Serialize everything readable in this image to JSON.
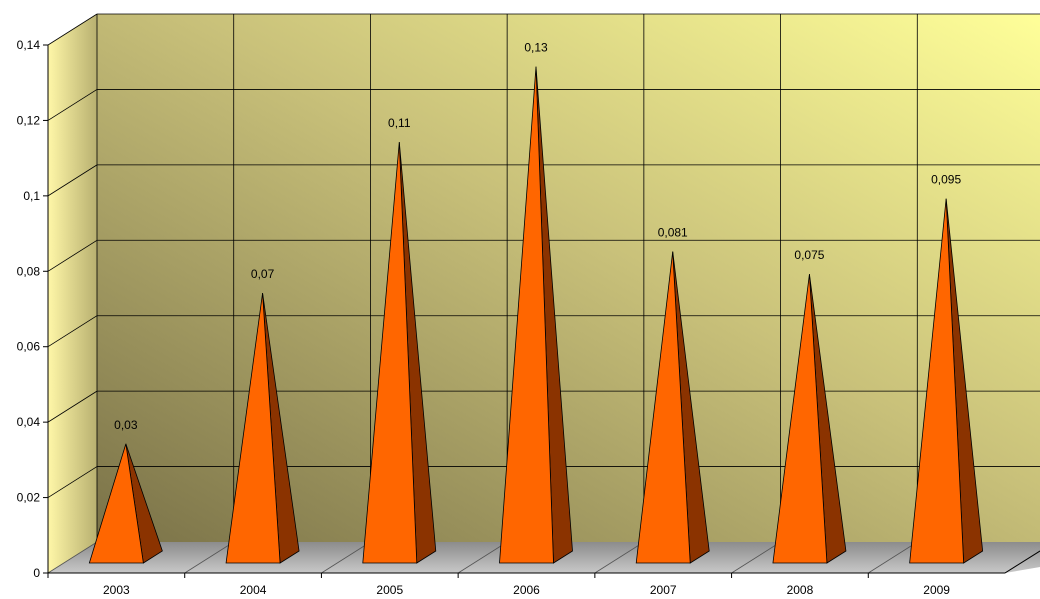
{
  "chart_data": {
    "type": "bar",
    "style": "3d-pyramid",
    "categories": [
      "2003",
      "2004",
      "2005",
      "2006",
      "2007",
      "2008",
      "2009"
    ],
    "series": [
      {
        "values": [
          0.03,
          0.07,
          0.11,
          0.13,
          0.081,
          0.075,
          0.095
        ]
      }
    ],
    "data_labels": [
      "0,03",
      "0,07",
      "0,11",
      "0,13",
      "0,081",
      "0,075",
      "0,095"
    ],
    "y_ticks": [
      0,
      0.02,
      0.04,
      0.06,
      0.08,
      0.1,
      0.12,
      0.14
    ],
    "y_tick_labels": [
      "0",
      "0,02",
      "0,04",
      "0,06",
      "0,08",
      "0,1",
      "0,12",
      "0,14"
    ],
    "ylim": [
      0,
      0.14
    ],
    "grid": true,
    "legend": "none",
    "title": "",
    "xlabel": "",
    "ylabel": "",
    "colors": {
      "pyramid_front": "#ff6600",
      "pyramid_side": "#8b3300",
      "back_wall_bright": "#ffff99",
      "back_wall_dark": "#7a7248",
      "side_wall": "#e6df8a",
      "floor": "#a6a6a6",
      "grid": "#000000"
    }
  }
}
